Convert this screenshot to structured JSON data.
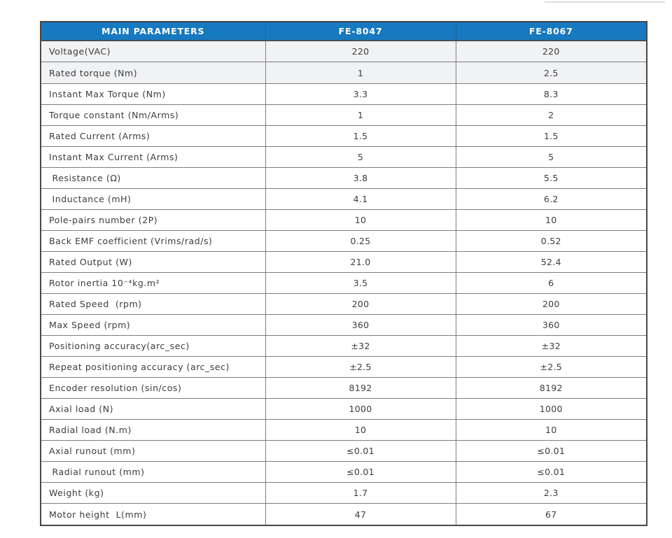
{
  "table": {
    "header_bg": "#1779bf",
    "header_text_color": "#ffffff",
    "shaded_row_bg": "#f1f2f4",
    "headers": [
      "MAIN PARAMETERS",
      "FE-8047",
      "FE-8067"
    ],
    "columns": [
      "label",
      "fe8047",
      "fe8067"
    ],
    "shaded_rows": [
      0,
      1
    ],
    "rows": [
      {
        "label": "Voltage(VAC)",
        "fe8047": "220",
        "fe8067": "220"
      },
      {
        "label": "Rated torque (Nm)",
        "fe8047": "1",
        "fe8067": "2.5"
      },
      {
        "label": "Instant Max Torque (Nm)",
        "fe8047": "3.3",
        "fe8067": "8.3"
      },
      {
        "label": "Torque constant (Nm/Arms)",
        "fe8047": "1",
        "fe8067": "2"
      },
      {
        "label": "Rated Current (Arms)",
        "fe8047": "1.5",
        "fe8067": "1.5"
      },
      {
        "label": "Instant Max Current (Arms)",
        "fe8047": "5",
        "fe8067": "5"
      },
      {
        "label": " Resistance (Ω)",
        "fe8047": "3.8",
        "fe8067": "5.5"
      },
      {
        "label": " Inductance (mH)",
        "fe8047": "4.1",
        "fe8067": "6.2"
      },
      {
        "label": "Pole-pairs number (2P)",
        "fe8047": "10",
        "fe8067": "10"
      },
      {
        "label": "Back EMF coefficient (Vrims/rad/s)",
        "fe8047": "0.25",
        "fe8067": "0.52"
      },
      {
        "label": "Rated Output (W)",
        "fe8047": "21.0",
        "fe8067": "52.4"
      },
      {
        "label": "Rotor inertia 10⁻⁴kg.m²",
        "fe8047": "3.5",
        "fe8067": "6"
      },
      {
        "label": "Rated Speed  (rpm)",
        "fe8047": "200",
        "fe8067": "200"
      },
      {
        "label": "Max Speed (rpm)",
        "fe8047": "360",
        "fe8067": "360"
      },
      {
        "label": "Positioning accuracy(arc_sec)",
        "fe8047": "±32",
        "fe8067": "±32"
      },
      {
        "label": "Repeat positioning accuracy (arc_sec)",
        "fe8047": "±2.5",
        "fe8067": "±2.5"
      },
      {
        "label": "Encoder resolution (sin/cos)",
        "fe8047": "8192",
        "fe8067": "8192"
      },
      {
        "label": "Axial load (N)",
        "fe8047": "1000",
        "fe8067": "1000"
      },
      {
        "label": "Radial load (N.m)",
        "fe8047": "10",
        "fe8067": "10"
      },
      {
        "label": "Axial runout (mm)",
        "fe8047": "≤0.01",
        "fe8067": "≤0.01"
      },
      {
        "label": " Radial runout (mm)",
        "fe8047": "≤0.01",
        "fe8067": "≤0.01"
      },
      {
        "label": "Weight (kg)",
        "fe8047": "1.7",
        "fe8067": "2.3"
      },
      {
        "label": "Motor height  L(mm)",
        "fe8047": "47",
        "fe8067": "67"
      }
    ]
  }
}
